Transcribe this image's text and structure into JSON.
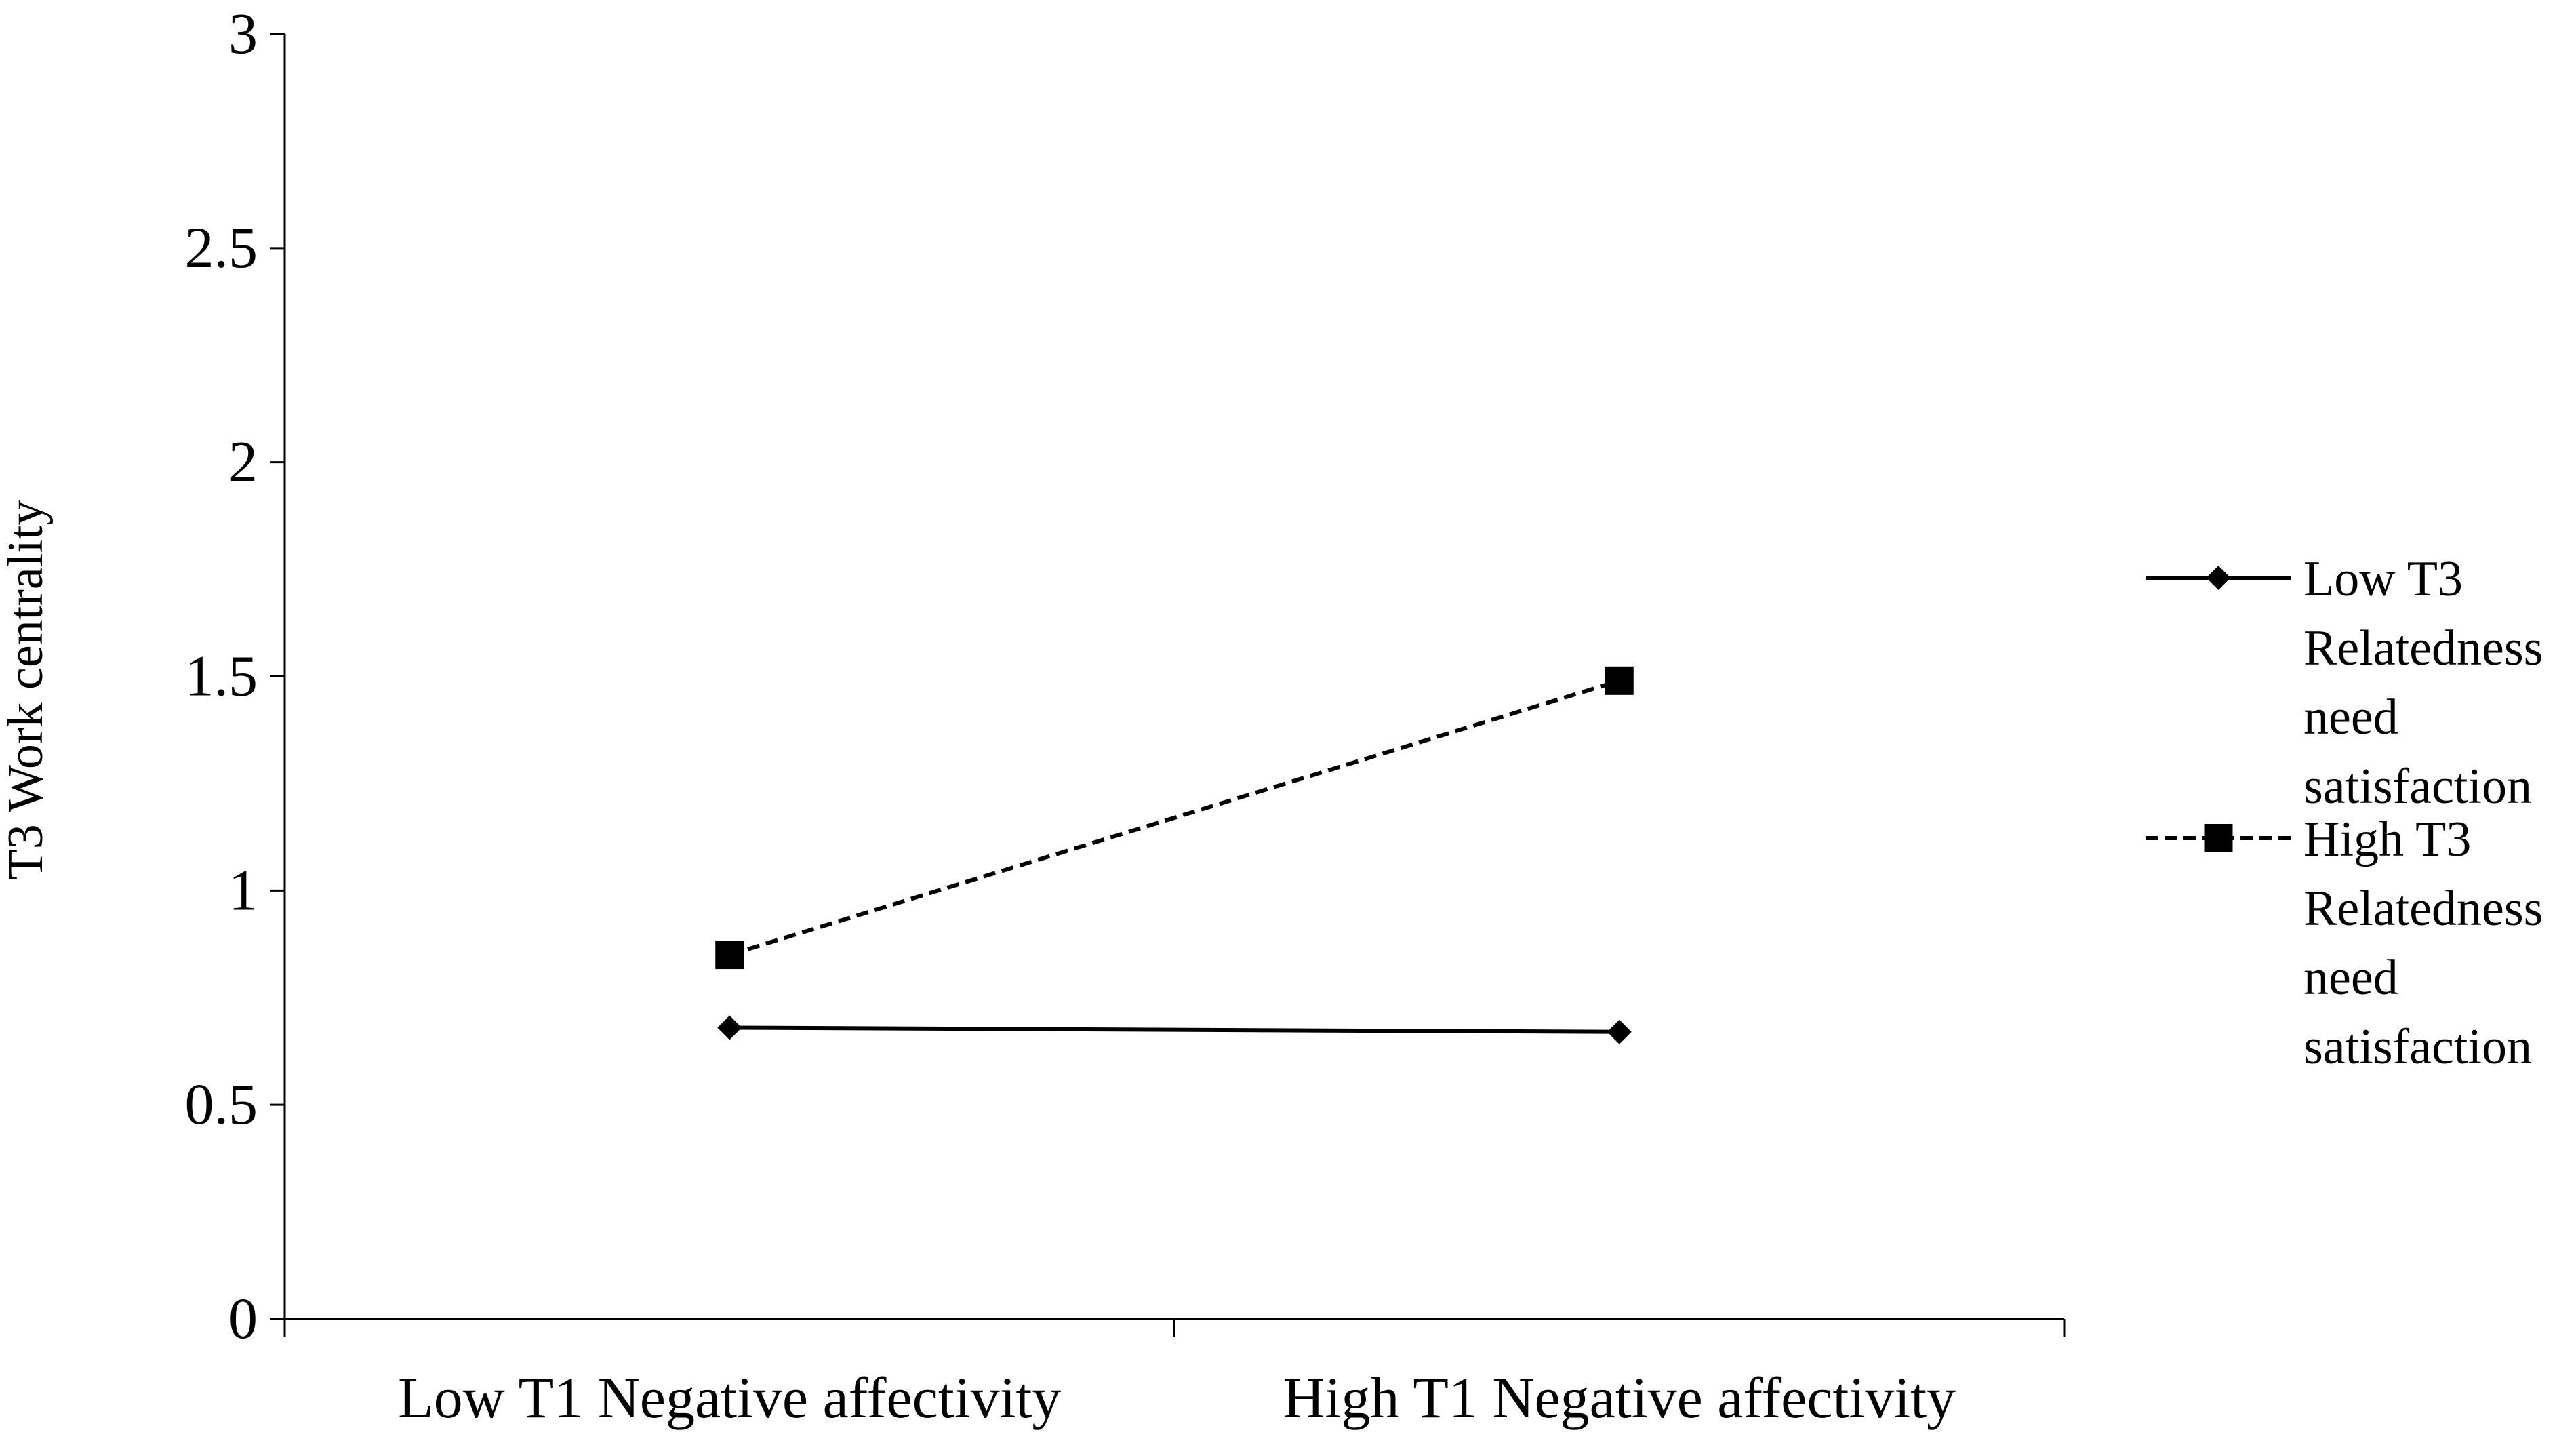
{
  "chart_data": {
    "type": "line",
    "title": "",
    "xlabel": "",
    "ylabel": "T3 Work centrality",
    "categories": [
      "Low T1 Negative affectivity",
      "High T1 Negative affectivity"
    ],
    "ylim": [
      0,
      3
    ],
    "yticks": [
      0,
      0.5,
      1,
      1.5,
      2,
      2.5,
      3
    ],
    "ytick_labels": [
      "0",
      "0.5",
      "1",
      "1.5",
      "2",
      "2.5",
      "3"
    ],
    "grid": false,
    "legend_position": "right",
    "series": [
      {
        "name": "Low T3 Relatedness need satisfaction",
        "legend_lines": [
          "Low T3",
          "Relatedness",
          "need",
          "satisfaction"
        ],
        "values": [
          0.68,
          0.67
        ],
        "line_style": "solid",
        "marker": "diamond",
        "color": "#000000"
      },
      {
        "name": "High T3 Relatedness need satisfaction",
        "legend_lines": [
          "High T3",
          "Relatedness",
          "need",
          "satisfaction"
        ],
        "values": [
          0.85,
          1.49
        ],
        "line_style": "dashed",
        "marker": "square",
        "color": "#000000"
      }
    ]
  }
}
